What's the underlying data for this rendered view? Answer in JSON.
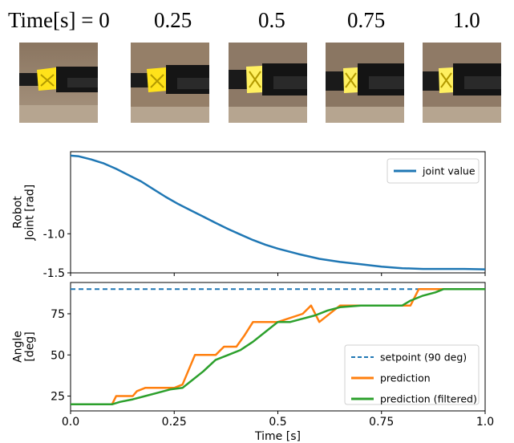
{
  "time_strip": {
    "labels": [
      "Time[s] = 0",
      "0.25",
      "0.5",
      "0.75",
      "1.0"
    ]
  },
  "chart_data": [
    {
      "type": "line",
      "xlabel": "",
      "ylabel_lines": [
        "Robot",
        "Joint [rad]"
      ],
      "xlim": [
        0,
        1.0
      ],
      "ylim": [
        -1.5,
        0.05
      ],
      "yticks": [
        "-1.0",
        "-1.5"
      ],
      "legend_position": "top-right",
      "grid": false,
      "series": [
        {
          "name": "joint value",
          "color": "#1f77b4",
          "x": [
            0,
            0.02,
            0.05,
            0.08,
            0.11,
            0.14,
            0.17,
            0.2,
            0.23,
            0.26,
            0.29,
            0.32,
            0.35,
            0.38,
            0.41,
            0.44,
            0.47,
            0.5,
            0.55,
            0.6,
            0.65,
            0.7,
            0.75,
            0.8,
            0.85,
            0.9,
            0.95,
            1.0
          ],
          "y": [
            0.0,
            -0.01,
            -0.05,
            -0.1,
            -0.17,
            -0.25,
            -0.33,
            -0.43,
            -0.53,
            -0.62,
            -0.7,
            -0.78,
            -0.86,
            -0.94,
            -1.01,
            -1.08,
            -1.14,
            -1.19,
            -1.26,
            -1.32,
            -1.36,
            -1.39,
            -1.42,
            -1.44,
            -1.45,
            -1.45,
            -1.45,
            -1.455
          ]
        }
      ]
    },
    {
      "type": "line",
      "xlabel": "Time [s]",
      "ylabel_lines": [
        "Angle",
        "[deg]"
      ],
      "xlim": [
        0,
        1.0
      ],
      "ylim": [
        16,
        94
      ],
      "xticks": [
        "0.0",
        "0.25",
        "0.5",
        "0.75",
        "1.0"
      ],
      "yticks": [
        "25",
        "50",
        "75"
      ],
      "legend_position": "bottom-right",
      "grid": false,
      "series": [
        {
          "name": "setpoint (90 deg)",
          "color": "#1f77b4",
          "dashed": true,
          "x": [
            0,
            1.0
          ],
          "y": [
            90,
            90
          ]
        },
        {
          "name": "prediction",
          "color": "#ff7f0e",
          "x": [
            0,
            0.1,
            0.11,
            0.15,
            0.16,
            0.18,
            0.2,
            0.25,
            0.27,
            0.3,
            0.35,
            0.37,
            0.4,
            0.42,
            0.44,
            0.5,
            0.56,
            0.58,
            0.6,
            0.65,
            0.7,
            0.75,
            0.82,
            0.84,
            0.86,
            0.9,
            1.0
          ],
          "y": [
            20,
            20,
            25,
            25,
            28,
            30,
            30,
            30,
            32,
            50,
            50,
            55,
            55,
            62,
            70,
            70,
            75,
            80,
            70,
            80,
            80,
            80,
            80,
            90,
            90,
            90,
            90
          ]
        },
        {
          "name": "prediction (filtered)",
          "color": "#2ca02c",
          "x": [
            0,
            0.1,
            0.12,
            0.15,
            0.18,
            0.21,
            0.24,
            0.27,
            0.29,
            0.32,
            0.35,
            0.38,
            0.41,
            0.44,
            0.47,
            0.5,
            0.53,
            0.56,
            0.59,
            0.62,
            0.65,
            0.7,
            0.75,
            0.8,
            0.82,
            0.85,
            0.88,
            0.9,
            1.0
          ],
          "y": [
            20,
            20,
            21.5,
            23,
            25,
            27,
            29,
            30,
            34,
            40,
            47,
            50,
            53,
            58,
            64,
            70,
            70,
            72,
            74,
            77,
            79,
            80,
            80,
            80,
            83,
            86,
            88,
            90,
            90
          ]
        }
      ]
    }
  ]
}
